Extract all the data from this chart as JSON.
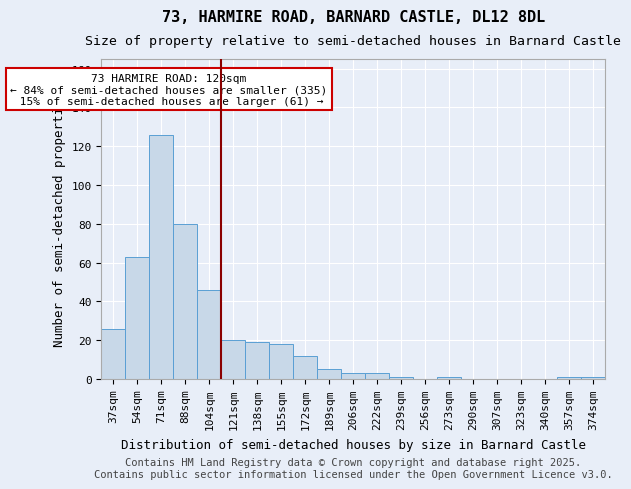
{
  "title": "73, HARMIRE ROAD, BARNARD CASTLE, DL12 8DL",
  "subtitle": "Size of property relative to semi-detached houses in Barnard Castle",
  "xlabel": "Distribution of semi-detached houses by size in Barnard Castle",
  "ylabel": "Number of semi-detached properties",
  "footnote1": "Contains HM Land Registry data © Crown copyright and database right 2025.",
  "footnote2": "Contains public sector information licensed under the Open Government Licence v3.0.",
  "bin_labels": [
    "37sqm",
    "54sqm",
    "71sqm",
    "88sqm",
    "104sqm",
    "121sqm",
    "138sqm",
    "155sqm",
    "172sqm",
    "189sqm",
    "206sqm",
    "222sqm",
    "239sqm",
    "256sqm",
    "273sqm",
    "290sqm",
    "307sqm",
    "323sqm",
    "340sqm",
    "357sqm",
    "374sqm"
  ],
  "counts": [
    26,
    63,
    126,
    80,
    46,
    20,
    19,
    18,
    12,
    5,
    3,
    3,
    1,
    0,
    1,
    0,
    0,
    0,
    0,
    1,
    1
  ],
  "bar_color": "#c8d8e8",
  "bar_edge_color": "#5a9fd4",
  "vline_bin": 5,
  "vline_color": "#8b0000",
  "annotation_text": "73 HARMIRE ROAD: 120sqm\n← 84% of semi-detached houses are smaller (335)\n 15% of semi-detached houses are larger (61) →",
  "annotation_box_color": "#ffffff",
  "annotation_box_edge": "#cc0000",
  "ylim": [
    0,
    165
  ],
  "yticks": [
    0,
    20,
    40,
    60,
    80,
    100,
    120,
    140,
    160
  ],
  "background_color": "#e8eef8",
  "grid_color": "#ffffff",
  "title_fontsize": 11,
  "subtitle_fontsize": 9.5,
  "axis_label_fontsize": 9,
  "tick_fontsize": 8,
  "footnote_fontsize": 7.5
}
